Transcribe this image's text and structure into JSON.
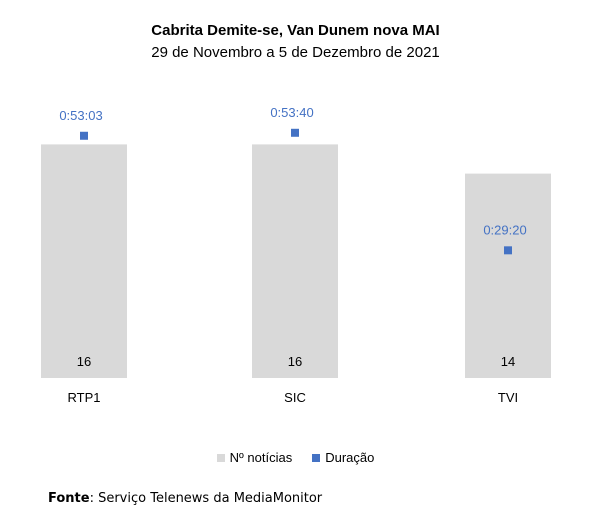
{
  "colors": {
    "bar": "#d9d9d9",
    "marker": "#4472c4",
    "duration_label": "#4472c4"
  },
  "chart_data": {
    "type": "bar",
    "title": "Cabrita Demite-se, Van Dunem nova MAI",
    "subtitle": "29 de Novembro a 5 de Dezembro de 2021",
    "categories": [
      "RTP1",
      "SIC",
      "TVI"
    ],
    "series": [
      {
        "name": "Nº notícias",
        "type": "bar",
        "values": [
          16,
          16,
          14
        ]
      },
      {
        "name": "Duração",
        "type": "scatter",
        "values": [
          "0:53:03",
          "0:53:40",
          "0:29:20"
        ],
        "values_seconds": [
          3183,
          3220,
          1760
        ]
      }
    ],
    "legend_position": "bottom",
    "grid": false
  },
  "source": {
    "label": "Fonte",
    "text": ": Serviço Telenews da MediaMonitor"
  }
}
